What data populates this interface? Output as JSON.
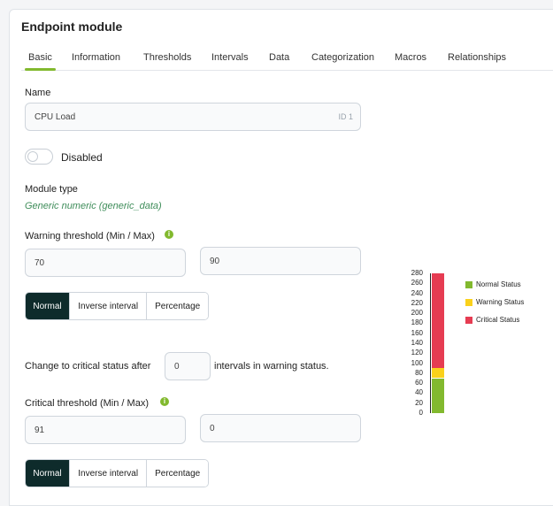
{
  "panel": {
    "title": "Endpoint module"
  },
  "tabs": [
    {
      "label": "Basic",
      "active": true
    },
    {
      "label": "Information"
    },
    {
      "label": "Thresholds"
    },
    {
      "label": "Intervals"
    },
    {
      "label": "Data"
    },
    {
      "label": "Categorization"
    },
    {
      "label": "Macros"
    },
    {
      "label": "Relationships"
    }
  ],
  "form": {
    "name_label": "Name",
    "name_value": "CPU Load",
    "name_id": "ID 1",
    "disabled_label": "Disabled",
    "disabled": false,
    "module_type_label": "Module type",
    "module_type_value": "Generic numeric (generic_data)",
    "warning": {
      "label": "Warning threshold (Min / Max)",
      "min": "70",
      "max": "90",
      "modes": [
        "Normal",
        "Inverse interval",
        "Percentage"
      ],
      "selected_mode": "Normal"
    },
    "critical_change": {
      "before": "Change to critical status after",
      "value": "0",
      "after": "intervals in warning status."
    },
    "critical": {
      "label": "Critical threshold (Min / Max)",
      "min": "91",
      "max": "0",
      "modes": [
        "Normal",
        "Inverse interval",
        "Percentage"
      ],
      "selected_mode": "Normal"
    }
  },
  "colors": {
    "normal": "#82b92e",
    "warning": "#fad11b",
    "critical": "#e63c52",
    "accent": "#82b92e",
    "selected_button": "#0e2b2b"
  },
  "chart_data": {
    "type": "bar",
    "ylim": [
      0,
      280
    ],
    "yticks": [
      "280",
      "260",
      "240",
      "220",
      "200",
      "180",
      "160",
      "140",
      "120",
      "100",
      "80",
      "60",
      "40",
      "20",
      "0"
    ],
    "segments": [
      {
        "name": "Normal Status",
        "from": 0,
        "to": 70,
        "color": "#82b92e"
      },
      {
        "name": "Warning Status",
        "from": 70,
        "to": 90,
        "color": "#fad11b"
      },
      {
        "name": "Critical Status",
        "from": 90,
        "to": 280,
        "color": "#e63c52"
      }
    ],
    "legend": [
      "Normal Status",
      "Warning Status",
      "Critical Status"
    ]
  }
}
